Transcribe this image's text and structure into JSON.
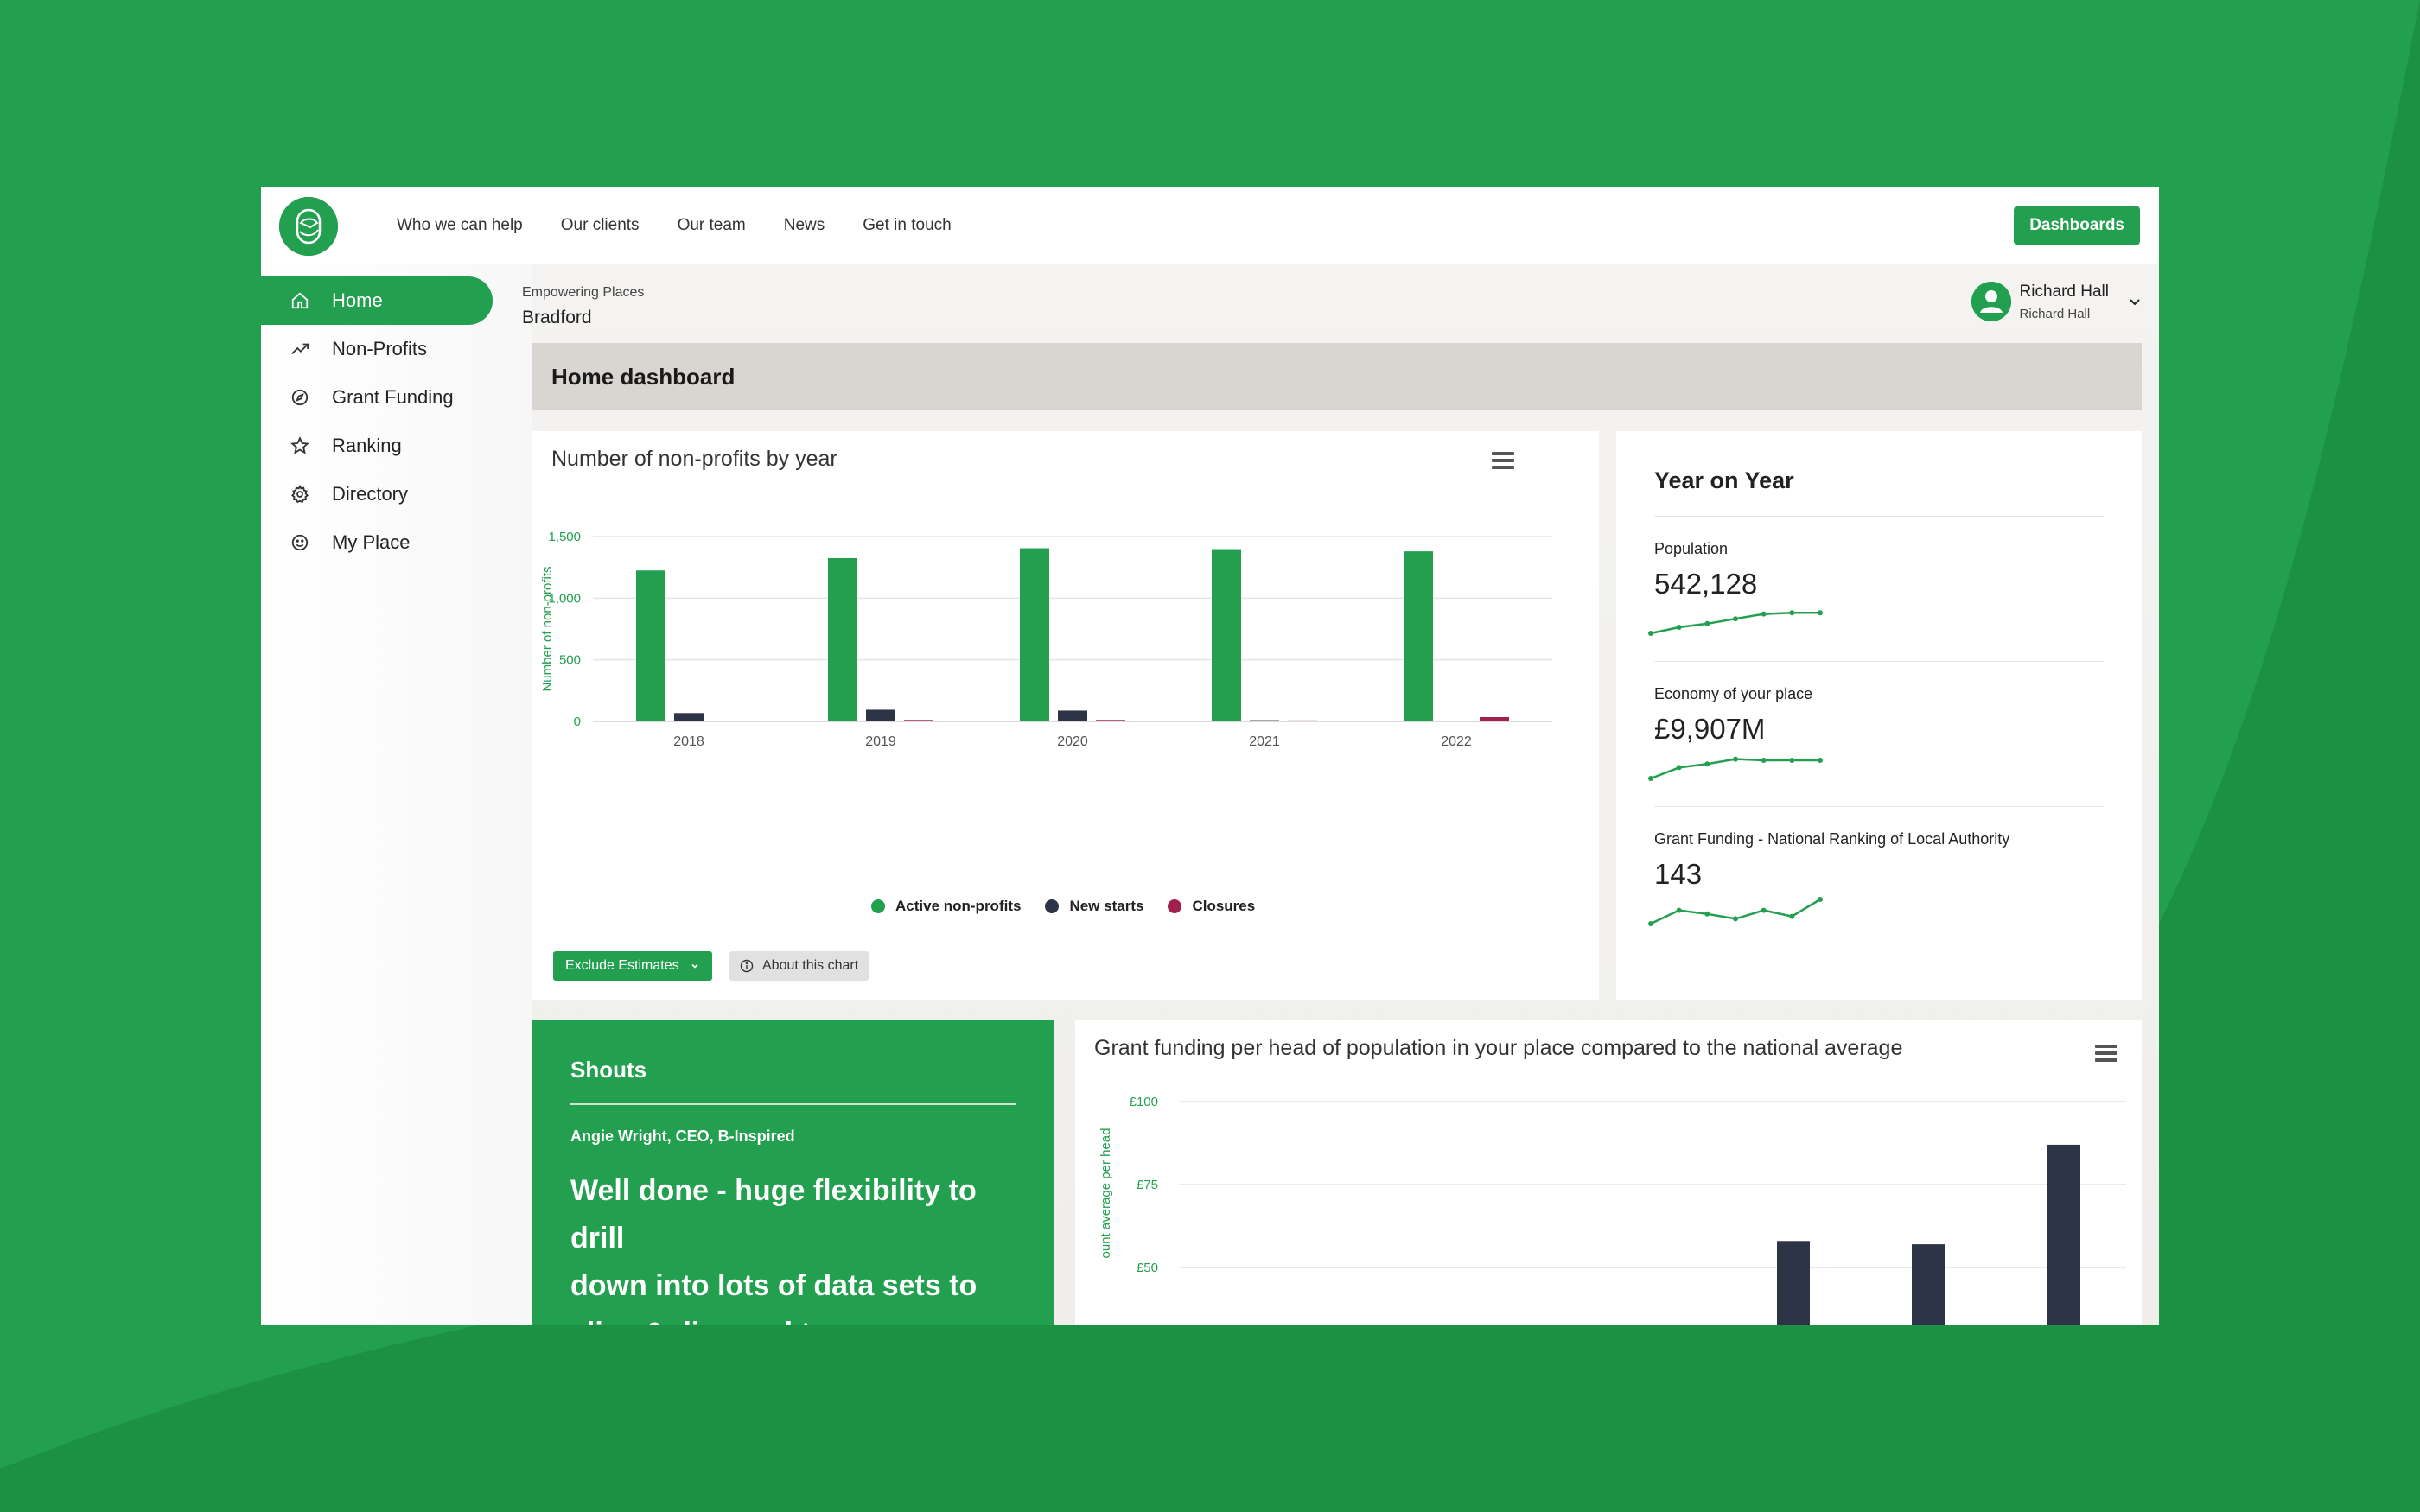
{
  "nav": {
    "links": [
      "Who we can help",
      "Our clients",
      "Our team",
      "News",
      "Get in touch"
    ],
    "dashboards_button": "Dashboards"
  },
  "sidebar": {
    "items": [
      {
        "label": "Home",
        "icon": "home-icon",
        "active": true
      },
      {
        "label": "Non-Profits",
        "icon": "trending-up-icon",
        "active": false
      },
      {
        "label": "Grant Funding",
        "icon": "compass-icon",
        "active": false
      },
      {
        "label": "Ranking",
        "icon": "star-icon",
        "active": false
      },
      {
        "label": "Directory",
        "icon": "gear-icon",
        "active": false
      },
      {
        "label": "My Place",
        "icon": "smiley-icon",
        "active": false
      }
    ]
  },
  "header": {
    "org": "Empowering Places",
    "place": "Bradford",
    "user_name": "Richard Hall",
    "user_sub": "Richard Hall"
  },
  "page_title": "Home dashboard",
  "colors": {
    "brand_green": "#22a04f",
    "navy": "#2e3447",
    "closures": "#a3204d"
  },
  "nonprofit_chart": {
    "title": "Number of non-profits by year",
    "legend": [
      "Active non-profits",
      "New starts",
      "Closures"
    ],
    "exclude_button": "Exclude Estimates",
    "about_button": "About this chart"
  },
  "yoy": {
    "title": "Year on Year",
    "items": [
      {
        "label": "Population",
        "value": "542,128",
        "trend": [
          0.0,
          0.25,
          0.4,
          0.6,
          0.8,
          0.85,
          0.85
        ]
      },
      {
        "label": "Economy of your place",
        "value": "£9,907M",
        "trend": [
          0.0,
          0.45,
          0.6,
          0.8,
          0.75,
          0.75,
          0.75
        ]
      },
      {
        "label": "Grant Funding - National Ranking of Local Authority",
        "value": "143",
        "trend": [
          0.0,
          0.55,
          0.4,
          0.2,
          0.55,
          0.3,
          1.0
        ]
      }
    ]
  },
  "shouts": {
    "title": "Shouts",
    "author": "Angie Wright, CEO, B-Inspired",
    "quote_lines": [
      "Well done - huge flexibility to drill",
      "down into lots of data sets to",
      "slice & dice and to answer so"
    ]
  },
  "grant_chart": {
    "title": "Grant funding per head of population in your place compared to the national average"
  },
  "chart_data": [
    {
      "type": "bar",
      "title": "Number of non-profits by year",
      "xlabel": "",
      "ylabel": "Number of non-profits",
      "categories": [
        "2018",
        "2019",
        "2020",
        "2021",
        "2022"
      ],
      "yticks": [
        "0",
        "500",
        "1,000",
        "1,500"
      ],
      "ylim": [
        0,
        1500
      ],
      "grid": true,
      "legend_position": "bottom",
      "series": [
        {
          "name": "Active non-profits",
          "color": "#22a04f",
          "values": [
            1225,
            1325,
            1405,
            1398,
            1380
          ]
        },
        {
          "name": "New starts",
          "color": "#2e3447",
          "values": [
            68,
            95,
            88,
            10,
            0
          ]
        },
        {
          "name": "Closures",
          "color": "#a3204d",
          "values": [
            0,
            12,
            12,
            8,
            35
          ]
        }
      ]
    },
    {
      "type": "bar",
      "title": "Grant funding per head of population in your place compared to the national average",
      "ylabel": "ount average per head",
      "yticks": [
        "£50",
        "£75",
        "£100"
      ],
      "ylim_visible": [
        40,
        100
      ],
      "grid": true,
      "series": [
        {
          "name": "",
          "color": "#2e3447",
          "values": [
            58,
            57,
            87
          ]
        }
      ]
    }
  ]
}
